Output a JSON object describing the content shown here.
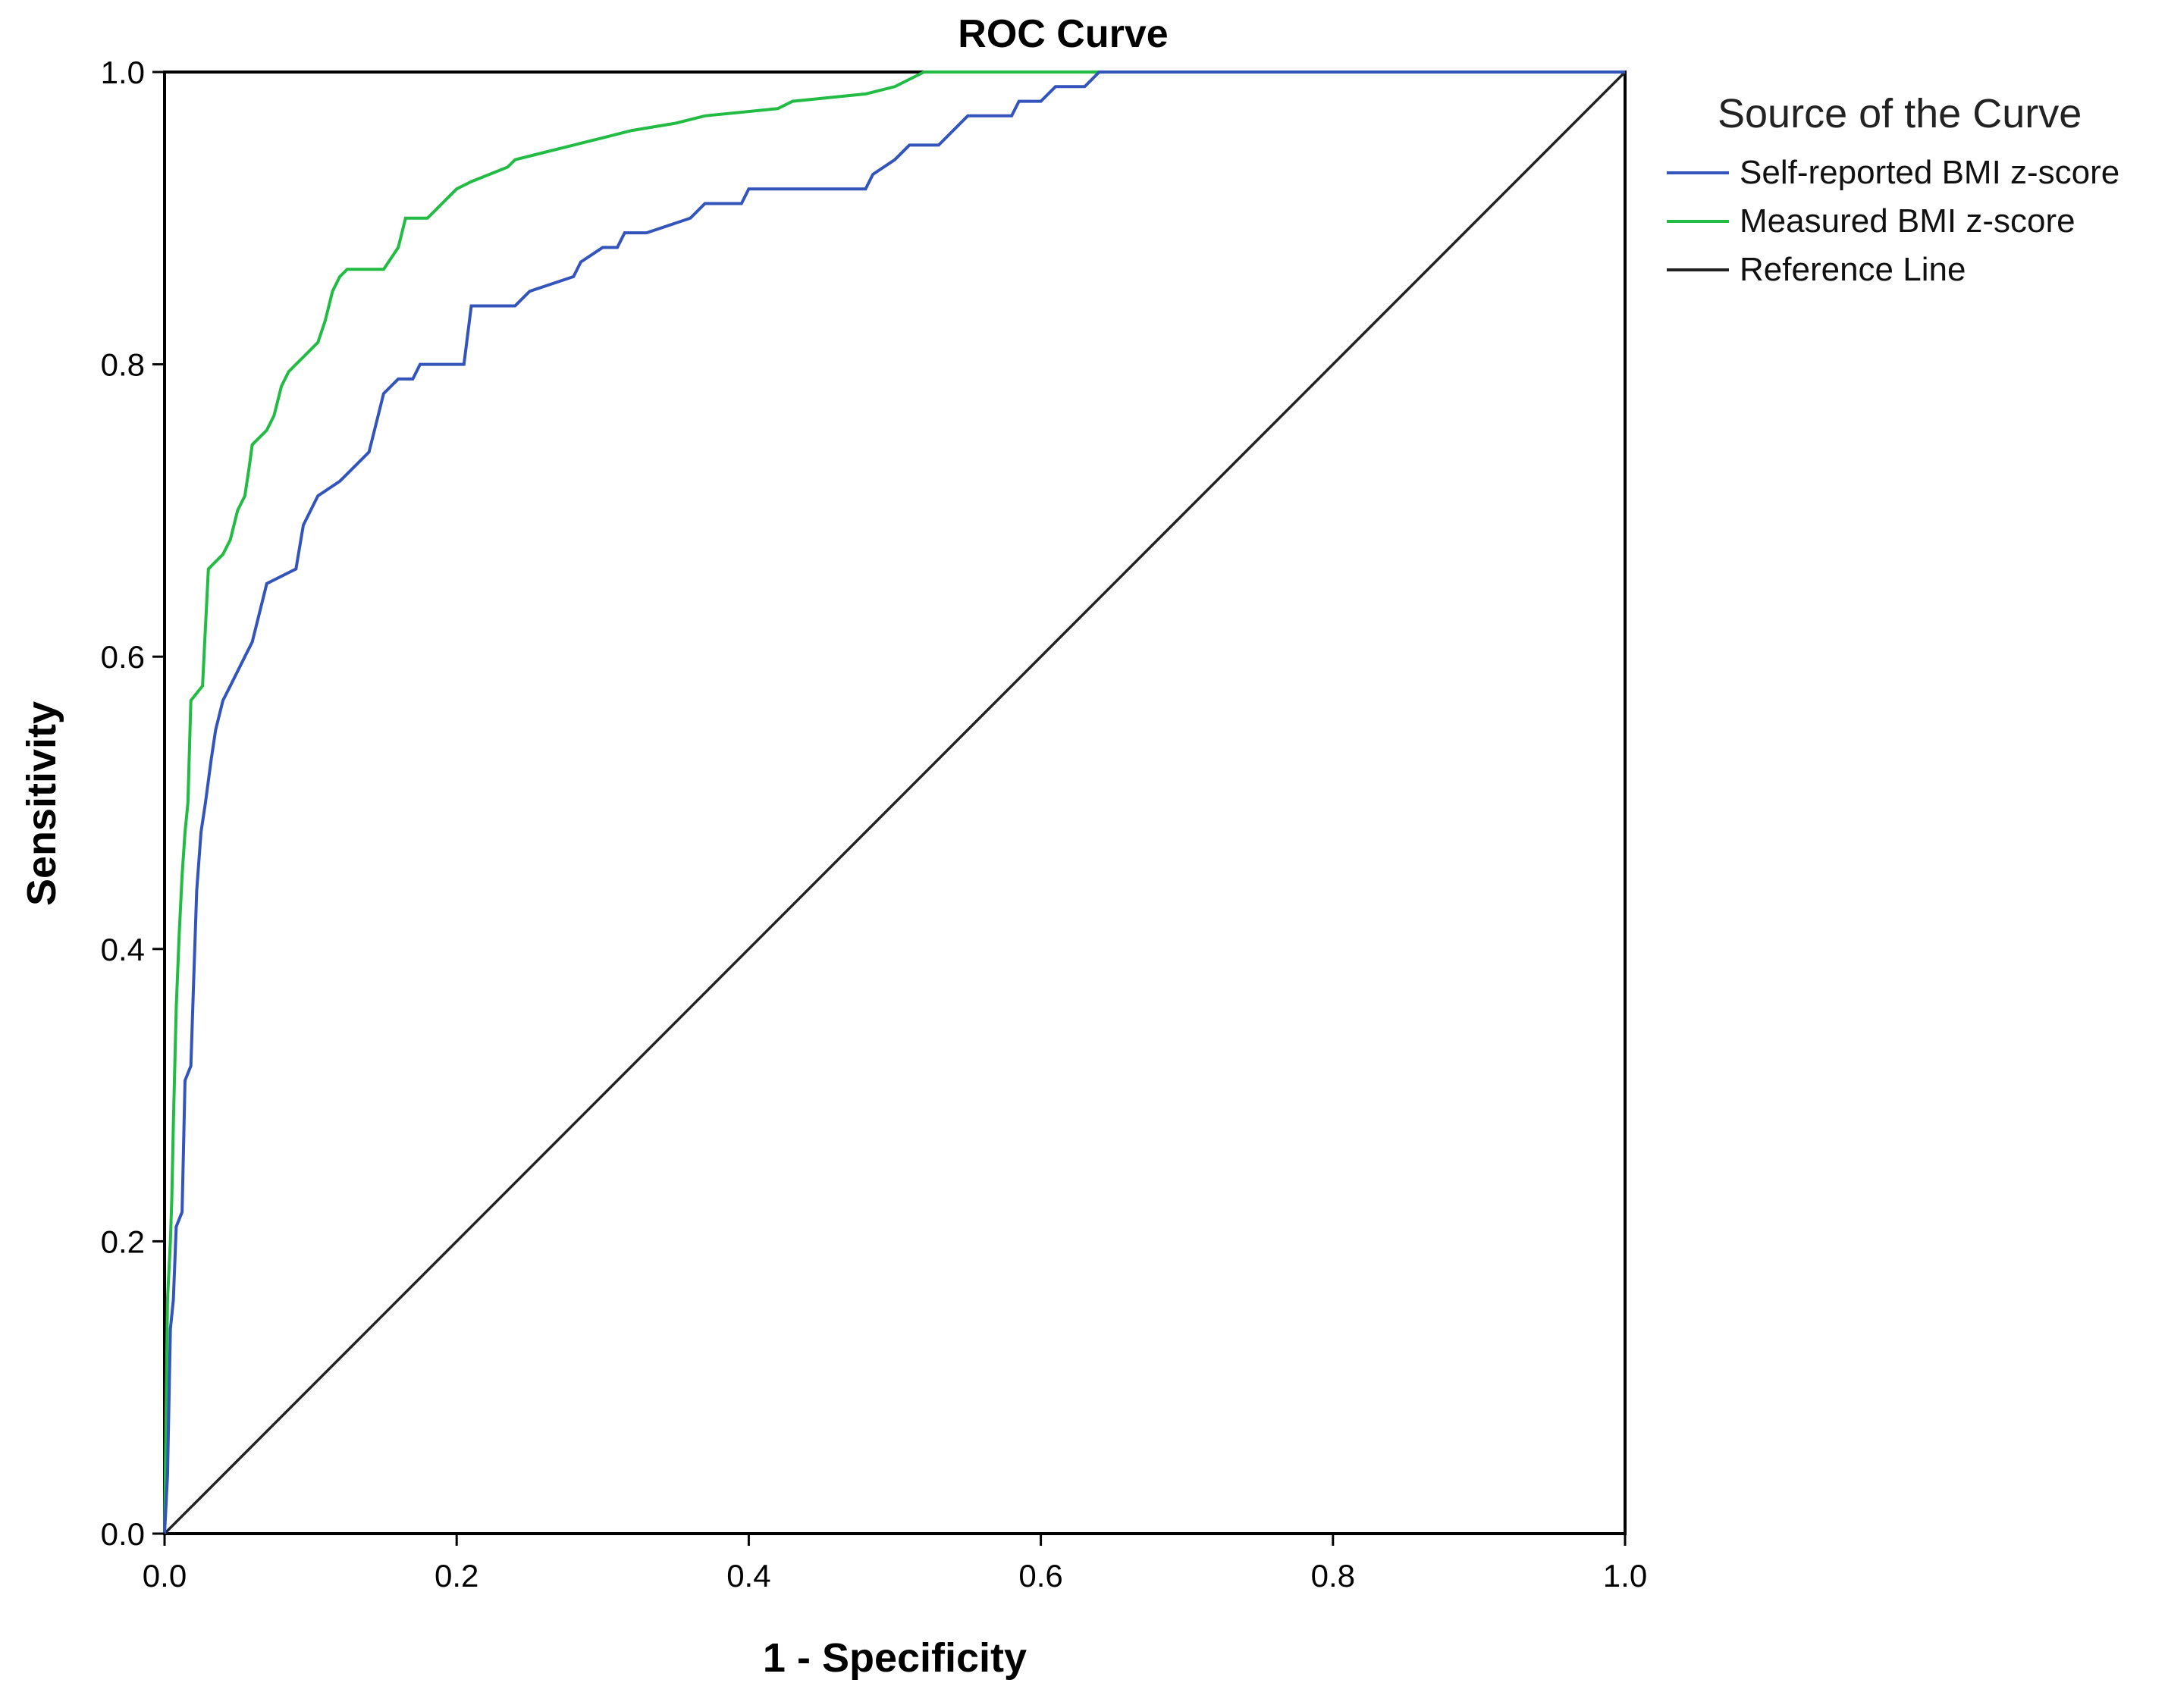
{
  "chart_data": {
    "type": "line",
    "title": "ROC Curve",
    "xlabel": "1 - Specificity",
    "ylabel": "Sensitivity",
    "xlim": [
      0,
      1
    ],
    "ylim": [
      0,
      1
    ],
    "x_ticks": [
      "0.0",
      "0.2",
      "0.4",
      "0.6",
      "0.8",
      "1.0"
    ],
    "y_ticks": [
      "0.0",
      "0.2",
      "0.4",
      "0.6",
      "0.8",
      "1.0"
    ],
    "grid": false,
    "legend": {
      "title": "Source of the Curve",
      "position": "right",
      "entries": [
        {
          "label": "Self-reported BMI z-score",
          "color": "#3355bb"
        },
        {
          "label": "Measured BMI z-score",
          "color": "#22bb44"
        },
        {
          "label": "Reference Line",
          "color": "#222222"
        }
      ]
    },
    "series": [
      {
        "name": "Self-reported BMI z-score",
        "color": "#3355bb",
        "points": [
          [
            0,
            0
          ],
          [
            0.002,
            0.04
          ],
          [
            0.004,
            0.14
          ],
          [
            0.006,
            0.16
          ],
          [
            0.008,
            0.21
          ],
          [
            0.012,
            0.22
          ],
          [
            0.014,
            0.31
          ],
          [
            0.018,
            0.32
          ],
          [
            0.02,
            0.38
          ],
          [
            0.022,
            0.44
          ],
          [
            0.025,
            0.48
          ],
          [
            0.028,
            0.5
          ],
          [
            0.032,
            0.53
          ],
          [
            0.035,
            0.55
          ],
          [
            0.04,
            0.57
          ],
          [
            0.045,
            0.58
          ],
          [
            0.055,
            0.6
          ],
          [
            0.06,
            0.61
          ],
          [
            0.065,
            0.63
          ],
          [
            0.07,
            0.65
          ],
          [
            0.09,
            0.66
          ],
          [
            0.095,
            0.69
          ],
          [
            0.105,
            0.71
          ],
          [
            0.12,
            0.72
          ],
          [
            0.13,
            0.73
          ],
          [
            0.14,
            0.74
          ],
          [
            0.145,
            0.76
          ],
          [
            0.15,
            0.78
          ],
          [
            0.16,
            0.79
          ],
          [
            0.17,
            0.79
          ],
          [
            0.175,
            0.8
          ],
          [
            0.205,
            0.8
          ],
          [
            0.21,
            0.84
          ],
          [
            0.24,
            0.84
          ],
          [
            0.25,
            0.85
          ],
          [
            0.28,
            0.86
          ],
          [
            0.285,
            0.87
          ],
          [
            0.3,
            0.88
          ],
          [
            0.31,
            0.88
          ],
          [
            0.315,
            0.89
          ],
          [
            0.33,
            0.89
          ],
          [
            0.36,
            0.9
          ],
          [
            0.37,
            0.91
          ],
          [
            0.395,
            0.91
          ],
          [
            0.4,
            0.92
          ],
          [
            0.43,
            0.92
          ],
          [
            0.48,
            0.92
          ],
          [
            0.485,
            0.93
          ],
          [
            0.5,
            0.94
          ],
          [
            0.51,
            0.95
          ],
          [
            0.53,
            0.95
          ],
          [
            0.54,
            0.96
          ],
          [
            0.55,
            0.97
          ],
          [
            0.58,
            0.97
          ],
          [
            0.585,
            0.98
          ],
          [
            0.6,
            0.98
          ],
          [
            0.61,
            0.99
          ],
          [
            0.63,
            0.99
          ],
          [
            0.64,
            1.0
          ],
          [
            1.0,
            1.0
          ]
        ]
      },
      {
        "name": "Measured BMI z-score",
        "color": "#22bb44",
        "points": [
          [
            0,
            0
          ],
          [
            0.002,
            0.16
          ],
          [
            0.004,
            0.2
          ],
          [
            0.005,
            0.23
          ],
          [
            0.006,
            0.28
          ],
          [
            0.008,
            0.36
          ],
          [
            0.01,
            0.41
          ],
          [
            0.012,
            0.45
          ],
          [
            0.014,
            0.48
          ],
          [
            0.016,
            0.5
          ],
          [
            0.018,
            0.57
          ],
          [
            0.026,
            0.58
          ],
          [
            0.028,
            0.62
          ],
          [
            0.03,
            0.66
          ],
          [
            0.04,
            0.67
          ],
          [
            0.045,
            0.68
          ],
          [
            0.05,
            0.7
          ],
          [
            0.055,
            0.71
          ],
          [
            0.058,
            0.73
          ],
          [
            0.06,
            0.745
          ],
          [
            0.07,
            0.755
          ],
          [
            0.075,
            0.765
          ],
          [
            0.08,
            0.785
          ],
          [
            0.085,
            0.795
          ],
          [
            0.09,
            0.8
          ],
          [
            0.095,
            0.805
          ],
          [
            0.1,
            0.81
          ],
          [
            0.105,
            0.815
          ],
          [
            0.11,
            0.83
          ],
          [
            0.115,
            0.85
          ],
          [
            0.12,
            0.86
          ],
          [
            0.125,
            0.865
          ],
          [
            0.15,
            0.865
          ],
          [
            0.16,
            0.88
          ],
          [
            0.165,
            0.9
          ],
          [
            0.18,
            0.9
          ],
          [
            0.19,
            0.91
          ],
          [
            0.2,
            0.92
          ],
          [
            0.21,
            0.925
          ],
          [
            0.235,
            0.935
          ],
          [
            0.24,
            0.94
          ],
          [
            0.26,
            0.945
          ],
          [
            0.28,
            0.95
          ],
          [
            0.3,
            0.955
          ],
          [
            0.32,
            0.96
          ],
          [
            0.35,
            0.965
          ],
          [
            0.37,
            0.97
          ],
          [
            0.42,
            0.975
          ],
          [
            0.43,
            0.98
          ],
          [
            0.48,
            0.985
          ],
          [
            0.5,
            0.99
          ],
          [
            0.51,
            0.995
          ],
          [
            0.52,
            1.0
          ],
          [
            1.0,
            1.0
          ]
        ]
      },
      {
        "name": "Reference Line",
        "color": "#222222",
        "points": [
          [
            0,
            0
          ],
          [
            1,
            1
          ]
        ]
      }
    ]
  }
}
